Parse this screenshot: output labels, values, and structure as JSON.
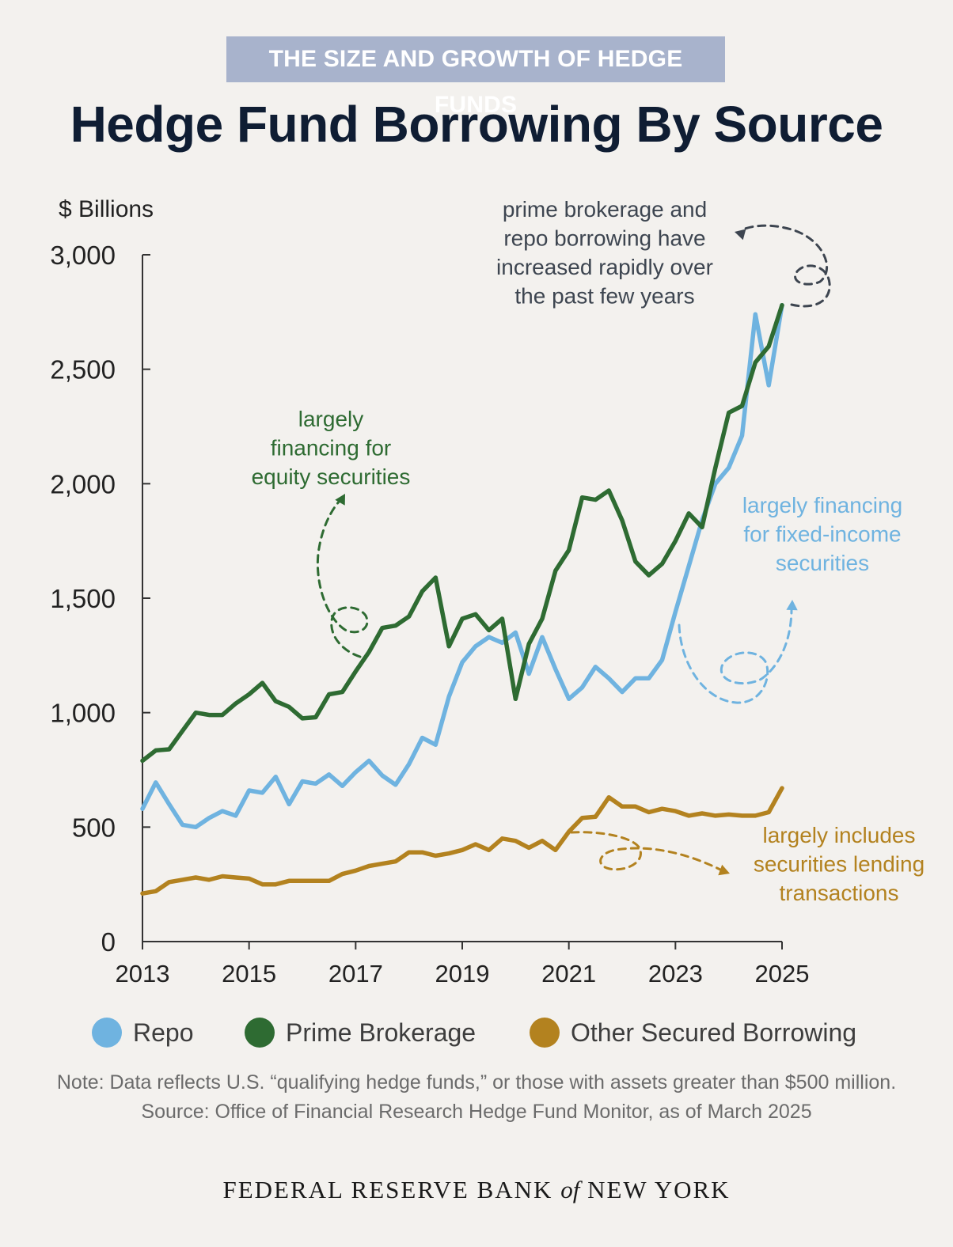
{
  "header": {
    "kicker": "THE SIZE AND GROWTH OF HEDGE FUNDS",
    "title": "Hedge Fund Borrowing By Source"
  },
  "colors": {
    "repo": "#6fb3e0",
    "prime": "#2e6b32",
    "other": "#b3821f",
    "axis": "#333333",
    "annotation_dark": "#3d4550"
  },
  "chart_data": {
    "type": "line",
    "ylabel": "$ Billions",
    "ylim": [
      0,
      3000
    ],
    "yticks": [
      0,
      500,
      1000,
      1500,
      2000,
      2500,
      3000
    ],
    "ytick_labels": [
      "0",
      "500",
      "1,000",
      "1,500",
      "2,000",
      "2,500",
      "3,000"
    ],
    "xlim": [
      2013,
      2025
    ],
    "xticks": [
      2013,
      2015,
      2017,
      2019,
      2021,
      2023,
      2025
    ],
    "xtick_labels": [
      "2013",
      "2015",
      "2017",
      "2019",
      "2021",
      "2023",
      "2025"
    ],
    "grid": false,
    "x": [
      2013.0,
      2013.25,
      2013.5,
      2013.75,
      2014.0,
      2014.25,
      2014.5,
      2014.75,
      2015.0,
      2015.25,
      2015.5,
      2015.75,
      2016.0,
      2016.25,
      2016.5,
      2016.75,
      2017.0,
      2017.25,
      2017.5,
      2017.75,
      2018.0,
      2018.25,
      2018.5,
      2018.75,
      2019.0,
      2019.25,
      2019.5,
      2019.75,
      2020.0,
      2020.25,
      2020.5,
      2020.75,
      2021.0,
      2021.25,
      2021.5,
      2021.75,
      2022.0,
      2022.25,
      2022.5,
      2022.75,
      2023.0,
      2023.25,
      2023.5,
      2023.75,
      2024.0,
      2024.25,
      2024.5,
      2024.75,
      2025.0
    ],
    "series": [
      {
        "name": "Repo",
        "color_key": "repo",
        "values": [
          580,
          695,
          600,
          510,
          500,
          540,
          570,
          550,
          660,
          650,
          720,
          600,
          700,
          690,
          730,
          680,
          740,
          790,
          725,
          685,
          775,
          890,
          860,
          1070,
          1220,
          1290,
          1330,
          1305,
          1350,
          1170,
          1330,
          1190,
          1060,
          1110,
          1200,
          1150,
          1090,
          1150,
          1150,
          1230,
          1440,
          1640,
          1840,
          2000,
          2070,
          2210,
          2740,
          2430,
          2780
        ]
      },
      {
        "name": "Prime Brokerage",
        "color_key": "prime",
        "values": [
          790,
          835,
          840,
          920,
          1000,
          990,
          990,
          1040,
          1080,
          1130,
          1050,
          1025,
          975,
          980,
          1080,
          1090,
          1180,
          1265,
          1370,
          1380,
          1420,
          1530,
          1590,
          1290,
          1410,
          1430,
          1360,
          1410,
          1060,
          1300,
          1410,
          1620,
          1710,
          1940,
          1930,
          1970,
          1840,
          1660,
          1600,
          1650,
          1750,
          1870,
          1810,
          2070,
          2310,
          2340,
          2530,
          2600,
          2780
        ]
      },
      {
        "name": "Other Secured Borrowing",
        "color_key": "other",
        "values": [
          210,
          220,
          260,
          270,
          280,
          270,
          285,
          280,
          275,
          250,
          250,
          265,
          265,
          265,
          265,
          295,
          310,
          330,
          340,
          350,
          390,
          390,
          375,
          385,
          400,
          425,
          400,
          450,
          440,
          410,
          440,
          400,
          480,
          540,
          545,
          630,
          590,
          590,
          565,
          580,
          570,
          550,
          560,
          550,
          555,
          550,
          550,
          565,
          670
        ]
      }
    ],
    "annotations": [
      {
        "key": "top",
        "lines": [
          "prime brokerage and",
          "repo borrowing have",
          "increased rapidly over",
          "the past few years"
        ]
      },
      {
        "key": "equity",
        "lines": [
          "largely",
          "financing for",
          "equity securities"
        ]
      },
      {
        "key": "fixed",
        "lines": [
          "largely financing",
          "for fixed-income",
          "securities"
        ]
      },
      {
        "key": "lending",
        "lines": [
          "largely includes",
          "securities lending",
          "transactions"
        ]
      }
    ]
  },
  "legend": [
    {
      "label": "Repo",
      "color_key": "repo"
    },
    {
      "label": "Prime Brokerage",
      "color_key": "prime"
    },
    {
      "label": "Other Secured Borrowing",
      "color_key": "other"
    }
  ],
  "footer": {
    "note": "Note: Data reflects U.S. “qualifying hedge funds,” or those with assets greater than $500 million.",
    "source": "Source: Office of Financial Research Hedge Fund Monitor, as of March 2025",
    "brand_left": "FEDERAL RESERVE BANK ",
    "brand_of": "of",
    "brand_right": " NEW YORK"
  }
}
